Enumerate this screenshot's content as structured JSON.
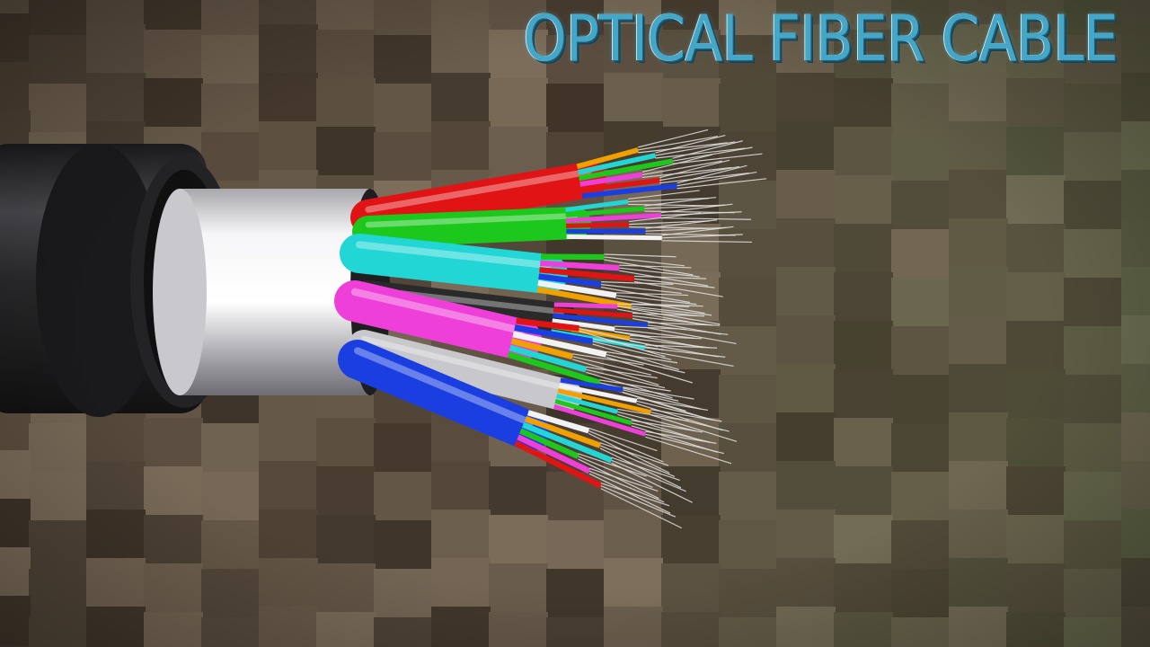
{
  "title": "OPTICAL FIBER CABLE",
  "colors": {
    "title_text": "#45a7c8",
    "background_dark": "#3e3328",
    "background_light": "#8a7a66",
    "background_green": "#5f6a48",
    "jacket": "#2a2a2c",
    "armor": "#e8e8ea"
  },
  "tube_colors": [
    "#e01414",
    "#1cc81c",
    "#22d6d6",
    "#ee40d8",
    "#2a2a2a",
    "#c8c8cc",
    "#1a3ee0"
  ],
  "fiber_colors": [
    "#f0a000",
    "#22d6d6",
    "#1cc81c",
    "#ee40d8",
    "#e01414",
    "#1a3ee0",
    "#f2f2f2"
  ]
}
